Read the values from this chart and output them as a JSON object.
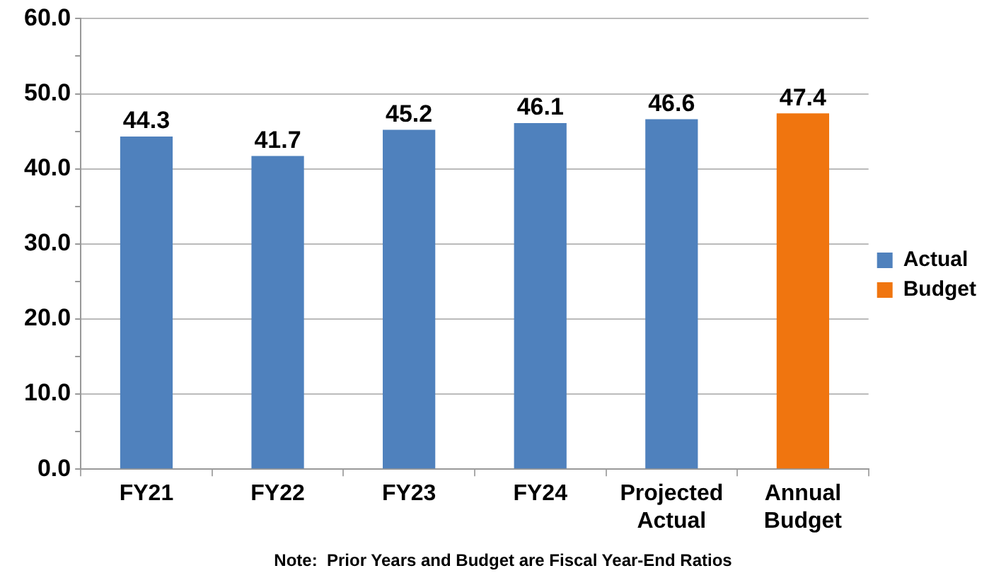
{
  "chart_data": {
    "type": "bar",
    "categories": [
      "FY21",
      "FY22",
      "FY23",
      "FY24",
      "Projected Actual",
      "Annual Budget"
    ],
    "series": [
      {
        "name": "Actual",
        "color": "#4f81bd",
        "values": [
          44.3,
          41.7,
          45.2,
          46.1,
          46.6,
          null
        ]
      },
      {
        "name": "Budget",
        "color": "#f0750f",
        "values": [
          null,
          null,
          null,
          null,
          null,
          47.4
        ]
      }
    ],
    "ylim": [
      0,
      60
    ],
    "yticks": [
      {
        "value": 0,
        "label": "0.0"
      },
      {
        "value": 5,
        "label": null
      },
      {
        "value": 10,
        "label": "10.0"
      },
      {
        "value": 15,
        "label": null
      },
      {
        "value": 20,
        "label": "20.0"
      },
      {
        "value": 25,
        "label": null
      },
      {
        "value": 30,
        "label": "30.0"
      },
      {
        "value": 35,
        "label": null
      },
      {
        "value": 40,
        "label": "40.0"
      },
      {
        "value": 45,
        "label": null
      },
      {
        "value": 50,
        "label": "50.0"
      },
      {
        "value": 55,
        "label": null
      },
      {
        "value": 60,
        "label": "60.0"
      }
    ],
    "grid": "y",
    "legend": "right",
    "data_labels": true,
    "annotations": [
      "Note:  Prior Years and Budget are Fiscal Year-End Ratios"
    ]
  }
}
